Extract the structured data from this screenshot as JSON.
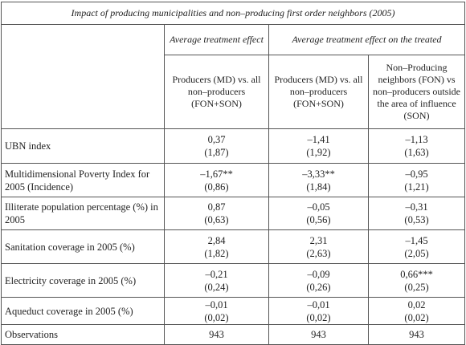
{
  "table": {
    "title": "Impact of producing municipalities and non–producing first order neighbors (2005)",
    "group_headers": {
      "ate": "Average treatment effect",
      "att": "Average treatment effect on the treated"
    },
    "column_headers": [
      "Producers (MD) vs. all non–producers (FON+SON)",
      "Producers (MD) vs. all non–producers (FON+SON)",
      "Non–Producing neighbors (FON) vs non–producers outside the area of influence (SON)"
    ],
    "rows": [
      {
        "label": "UBN index",
        "cells": [
          [
            "0,37",
            "(1,87)"
          ],
          [
            "–1,41",
            "(1,92)"
          ],
          [
            "–1,13",
            "(1,63)"
          ]
        ]
      },
      {
        "label": "Multidimensional Poverty Index for 2005 (Incidence)",
        "cells": [
          [
            "–1,67**",
            "(0,86)"
          ],
          [
            "–3,33**",
            "(1,84)"
          ],
          [
            "–0,95",
            "(1,21)"
          ]
        ]
      },
      {
        "label": "Illiterate population percentage (%) in 2005",
        "cells": [
          [
            "0,87",
            "(0,63)"
          ],
          [
            "–0,05",
            "(0,56)"
          ],
          [
            "–0,31",
            "(0,53)"
          ]
        ]
      },
      {
        "label": "Sanitation coverage in 2005 (%)",
        "cells": [
          [
            "2,84",
            "(1,82)"
          ],
          [
            "2,31",
            "(2,63)"
          ],
          [
            "–1,45",
            "(2,05)"
          ]
        ]
      },
      {
        "label": "Electricity coverage in 2005 (%)",
        "cells": [
          [
            "–0,21",
            "(0,24)"
          ],
          [
            "–0,09",
            "(0,26)"
          ],
          [
            "0,66***",
            "(0,25)"
          ]
        ]
      },
      {
        "label": "Aqueduct coverage in 2005 (%)",
        "cells": [
          [
            "–0,01",
            "(0,02)"
          ],
          [
            "–0,01",
            "(0,02)"
          ],
          [
            "0,02",
            "(0,02)"
          ]
        ]
      }
    ],
    "observations": {
      "label": "Observations",
      "values": [
        "943",
        "943",
        "943"
      ]
    }
  }
}
